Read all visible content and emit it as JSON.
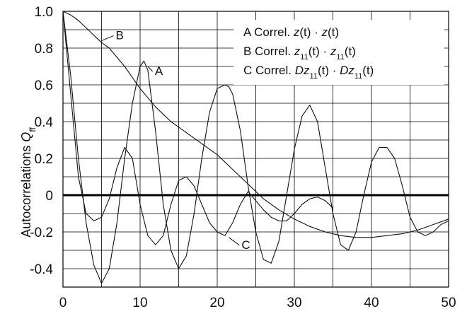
{
  "chart_data": {
    "type": "line",
    "title": "",
    "xlabel": "",
    "ylabel": "Autocorrelations",
    "ylabel_symbol": "Q",
    "ylabel_subscript": "ff",
    "xlim": [
      0,
      50
    ],
    "ylim": [
      -0.5,
      1.0
    ],
    "xticks": [
      "0",
      "10",
      "20",
      "30",
      "40",
      "50"
    ],
    "yticks": [
      "1.0",
      "0.8",
      "0.6",
      "0.4",
      "0.2",
      "0",
      "-0.2",
      "-0.4"
    ],
    "grid": true,
    "legend_position": "top-right",
    "legend": [
      {
        "letter": "A",
        "prefix": "Correl.",
        "expr": [
          [
            "z",
            "i"
          ],
          [
            "(t) · ",
            ""
          ],
          [
            "z",
            "i"
          ],
          [
            "(t)",
            ""
          ]
        ]
      },
      {
        "letter": "B",
        "prefix": "Correl.",
        "expr": [
          [
            "z",
            "i"
          ],
          [
            "11",
            "sub"
          ],
          [
            "(t) · ",
            ""
          ],
          [
            "z",
            "i"
          ],
          [
            "11",
            "sub"
          ],
          [
            "(t)",
            ""
          ]
        ]
      },
      {
        "letter": "C",
        "prefix": "Correl.",
        "expr": [
          [
            "Dz",
            "i"
          ],
          [
            "11",
            "sub"
          ],
          [
            "(t) · ",
            ""
          ],
          [
            "Dz",
            "i"
          ],
          [
            "11",
            "sub"
          ],
          [
            "(t)",
            ""
          ]
        ]
      }
    ],
    "annotations": [
      {
        "label": "A",
        "x": 11.0,
        "y": 0.7
      },
      {
        "label": "B",
        "x": 5.0,
        "y": 0.84
      },
      {
        "label": "C",
        "x": 21.5,
        "y": -0.23
      }
    ],
    "series": [
      {
        "name": "A",
        "x": [
          0,
          1,
          2,
          3,
          4,
          5,
          6,
          7,
          8,
          9,
          10,
          10.5,
          11,
          12,
          13,
          14,
          15,
          16,
          17,
          18,
          19,
          20,
          21,
          21.5,
          22,
          23,
          24,
          25,
          26,
          27,
          28,
          29,
          30,
          31,
          32,
          33,
          34,
          35,
          36,
          37,
          38,
          39,
          40,
          41,
          42,
          43,
          44,
          45,
          46,
          47,
          48,
          49,
          50
        ],
        "y": [
          1.0,
          0.65,
          0.2,
          -0.15,
          -0.38,
          -0.48,
          -0.4,
          -0.15,
          0.2,
          0.5,
          0.7,
          0.73,
          0.68,
          0.35,
          -0.05,
          -0.3,
          -0.4,
          -0.33,
          -0.1,
          0.2,
          0.45,
          0.58,
          0.6,
          0.59,
          0.55,
          0.35,
          0.05,
          -0.2,
          -0.35,
          -0.37,
          -0.25,
          0.0,
          0.25,
          0.43,
          0.49,
          0.4,
          0.15,
          -0.1,
          -0.27,
          -0.3,
          -0.2,
          0.0,
          0.18,
          0.26,
          0.26,
          0.2,
          0.05,
          -0.12,
          -0.2,
          -0.22,
          -0.2,
          -0.16,
          -0.14
        ]
      },
      {
        "name": "B",
        "x": [
          0,
          1,
          2,
          3,
          4,
          5,
          6,
          8,
          10,
          12,
          14,
          16,
          18,
          20,
          22,
          24,
          25,
          26,
          28,
          30,
          32,
          34,
          36,
          38,
          40,
          42,
          44,
          46,
          48,
          50
        ],
        "y": [
          1.0,
          0.98,
          0.95,
          0.91,
          0.87,
          0.83,
          0.8,
          0.7,
          0.58,
          0.48,
          0.4,
          0.34,
          0.28,
          0.22,
          0.14,
          0.06,
          0.02,
          -0.02,
          -0.08,
          -0.13,
          -0.17,
          -0.2,
          -0.22,
          -0.23,
          -0.23,
          -0.22,
          -0.21,
          -0.19,
          -0.16,
          -0.13
        ]
      },
      {
        "name": "C",
        "x": [
          0,
          1,
          2,
          3,
          4,
          5,
          6,
          7,
          8,
          9,
          10,
          11,
          12,
          13,
          14,
          15,
          16,
          17,
          18,
          19,
          20,
          21,
          22,
          23,
          24,
          25,
          26,
          27,
          28,
          29,
          30,
          31,
          32,
          33,
          34,
          35
        ],
        "y": [
          1.0,
          0.55,
          0.1,
          -0.1,
          -0.14,
          -0.12,
          -0.02,
          0.15,
          0.26,
          0.2,
          -0.05,
          -0.22,
          -0.27,
          -0.22,
          -0.05,
          0.08,
          0.1,
          0.05,
          -0.05,
          -0.15,
          -0.2,
          -0.22,
          -0.15,
          -0.05,
          0.02,
          -0.03,
          -0.08,
          -0.12,
          -0.14,
          -0.14,
          -0.1,
          -0.05,
          -0.02,
          -0.01,
          -0.03,
          -0.07
        ]
      }
    ]
  }
}
